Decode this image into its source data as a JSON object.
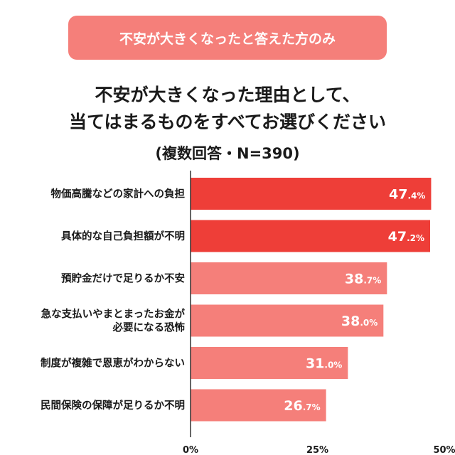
{
  "header": {
    "badge": "不安が大きくなったと答えた方のみ",
    "title_line1": "不安が大きくなった理由として、",
    "title_line2": "当てはまるものをすべてお選びください",
    "title_line3": "(複数回答・N=390)"
  },
  "chart_data": {
    "type": "bar",
    "orientation": "horizontal",
    "categories": [
      [
        "物価高騰などの家計への負担"
      ],
      [
        "具体的な自己負担額が不明"
      ],
      [
        "預貯金だけで足りるか不安"
      ],
      [
        "急な支払いやまとまったお金が",
        "必要になる恐怖"
      ],
      [
        "制度が複雑で恩恵がわからない"
      ],
      [
        "民間保険の保障が足りるか不明"
      ]
    ],
    "values": [
      47.4,
      47.2,
      38.7,
      38.0,
      31.0,
      26.7
    ],
    "value_labels": [
      {
        "main": "47",
        "decimal": ".4%"
      },
      {
        "main": "47",
        "decimal": ".2%"
      },
      {
        "main": "38",
        "decimal": ".7%"
      },
      {
        "main": "38",
        "decimal": ".0%"
      },
      {
        "main": "31",
        "decimal": ".0%"
      },
      {
        "main": "26",
        "decimal": ".7%"
      }
    ],
    "xlim": [
      0,
      50
    ],
    "xticks": [
      0,
      25,
      50
    ],
    "xtick_labels": [
      "0%",
      "25%",
      "50%"
    ],
    "grid": false,
    "colors": {
      "highlight": "#ee3e38",
      "normal": "#f57f7a",
      "axis": "#333333"
    },
    "highlight_count": 2
  }
}
